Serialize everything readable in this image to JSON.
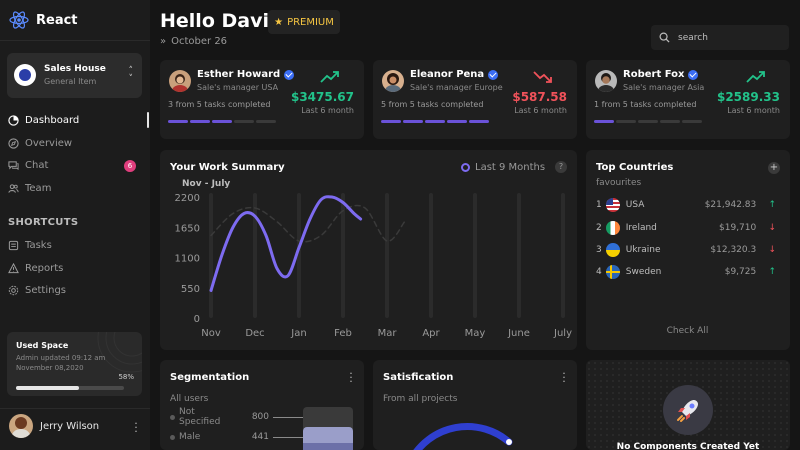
{
  "app": {
    "name": "React"
  },
  "workspace": {
    "name": "Sales House",
    "subtitle": "General Item"
  },
  "nav": {
    "items": [
      {
        "label": "Dashboard",
        "icon": "dashboard-icon",
        "active": true
      },
      {
        "label": "Overview",
        "icon": "overview-icon",
        "active": false
      },
      {
        "label": "Chat",
        "icon": "chat-icon",
        "active": false,
        "badge": "6"
      },
      {
        "label": "Team",
        "icon": "team-icon",
        "active": false
      }
    ]
  },
  "shortcuts": {
    "title": "SHORTCUTS",
    "items": [
      {
        "label": "Tasks",
        "icon": "tasks-icon"
      },
      {
        "label": "Reports",
        "icon": "reports-icon"
      },
      {
        "label": "Settings",
        "icon": "settings-icon"
      }
    ]
  },
  "used_space": {
    "title": "Used Space",
    "subtitle": "Admin updated 09:12 am November 08,2020",
    "percent_label": "58%",
    "percent": 58
  },
  "current_user": {
    "name": "Jerry Wilson"
  },
  "header": {
    "greeting": "Hello David",
    "badge": "PREMIUM",
    "date": "October 26",
    "search_placeholder": "search"
  },
  "people": [
    {
      "name": "Esther Howard",
      "role": "Sale's manager USA",
      "tasks": "3 from 5 tasks completed",
      "completed": 3,
      "total": 5,
      "amount": "$3475.67",
      "period": "Last 6 month",
      "trend": "up",
      "color": "#22c28a"
    },
    {
      "name": "Eleanor Pena",
      "role": "Sale's manager Europe",
      "tasks": "5 from 5 tasks completed",
      "completed": 5,
      "total": 5,
      "amount": "$587.58",
      "period": "Last 6 month",
      "trend": "down",
      "color": "#f0525a"
    },
    {
      "name": "Robert Fox",
      "role": "Sale's manager Asia",
      "tasks": "1 from 5 tasks completed",
      "completed": 1,
      "total": 5,
      "amount": "$2589.33",
      "period": "Last 6 month",
      "trend": "up",
      "color": "#22c28a"
    }
  ],
  "work_summary": {
    "title": "Your Work Summary",
    "legend": "Last 9 Months",
    "help": "?"
  },
  "chart_data": {
    "type": "line",
    "title": "Your Work Summary",
    "subtitle": "Nov - July",
    "categories": [
      "Nov",
      "Dec",
      "Jan",
      "Feb",
      "Mar",
      "Apr",
      "May",
      "June",
      "July"
    ],
    "y_ticks": [
      "2200",
      "1650",
      "1100",
      "550",
      "0"
    ],
    "ylim": [
      0,
      2200
    ],
    "series": [
      {
        "style": "solid",
        "color": "#7d6bf0",
        "x": [
          0,
          0.25,
          0.5,
          0.75,
          1,
          1.25,
          1.5,
          1.75,
          2,
          2.25,
          2.5,
          2.75,
          3,
          3.25,
          3.4
        ],
        "y": [
          500,
          1150,
          1650,
          1900,
          1850,
          1500,
          900,
          770,
          1280,
          1800,
          2150,
          2200,
          2100,
          1900,
          1800
        ]
      },
      {
        "style": "dashed",
        "color": "#3a3a3a",
        "x": [
          0,
          0.5,
          1,
          1.5,
          2,
          2.5,
          3,
          3.5,
          4,
          4.4
        ],
        "y": [
          1500,
          1900,
          2000,
          1750,
          1400,
          1500,
          1950,
          2000,
          1400,
          1750
        ]
      }
    ],
    "legend": "top-right",
    "grid": false
  },
  "top_countries": {
    "title": "Top Countries",
    "subtitle": "favourites",
    "plus": "+",
    "check_all": "Check All",
    "rows": [
      {
        "rank": "1",
        "name": "USA",
        "amount": "$21,942.83",
        "trend": "↑",
        "color": "#22c28a"
      },
      {
        "rank": "2",
        "name": "Ireland",
        "amount": "$19,710",
        "trend": "↓",
        "color": "#f0525a"
      },
      {
        "rank": "3",
        "name": "Ukraine",
        "amount": "$12,320.3",
        "trend": "↓",
        "color": "#f0525a"
      },
      {
        "rank": "4",
        "name": "Sweden",
        "amount": "$9,725",
        "trend": "↑",
        "color": "#22c28a"
      }
    ]
  },
  "segmentation": {
    "title": "Segmentation",
    "subtitle": "All users",
    "rows": [
      {
        "label": "Not Specified",
        "value": "800",
        "color": "#3a3a3a"
      },
      {
        "label": "Male",
        "value": "441",
        "color": "#9a9ec9"
      }
    ]
  },
  "satisfication": {
    "title": "Satisfication",
    "subtitle": "From all projects"
  },
  "empty_state": {
    "text": "No Components Created Yet"
  }
}
